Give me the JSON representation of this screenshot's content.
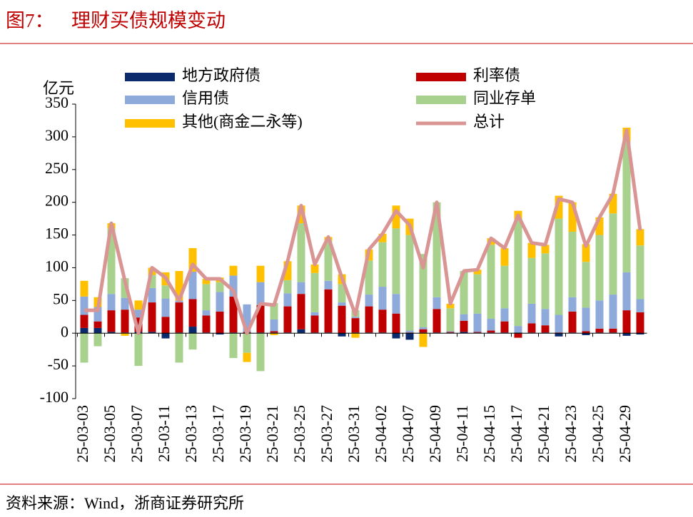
{
  "chart_data": {
    "type": "bar",
    "stacked": true,
    "figure_label": "图7：",
    "title": "理财买债规模变动",
    "y_label": "亿元",
    "source": "资料来源：Wind，浙商证券研究所",
    "categories": [
      "25-03-03",
      null,
      "25-03-05",
      null,
      "25-03-07",
      null,
      "25-03-11",
      null,
      "25-03-13",
      null,
      "25-03-17",
      null,
      "25-03-19",
      null,
      "25-03-21",
      null,
      "25-03-25",
      null,
      "25-03-27",
      null,
      "25-03-31",
      null,
      "25-04-02",
      null,
      "25-04-07",
      null,
      "25-04-09",
      null,
      "25-04-11",
      null,
      "25-04-15",
      null,
      "25-04-17",
      null,
      "25-04-21",
      null,
      "25-04-23",
      null,
      "25-04-25",
      null,
      "25-04-29",
      null
    ],
    "ylim": [
      -100,
      350
    ],
    "yticks": [
      -100,
      -50,
      0,
      50,
      100,
      150,
      200,
      250,
      300,
      350
    ],
    "grid": false,
    "series": [
      {
        "name": "地方政府债",
        "color": "#0b2a6b",
        "values": [
          8,
          8,
          2,
          1,
          2,
          2,
          -8,
          1,
          10,
          1,
          -2,
          1,
          1,
          1,
          1,
          1,
          6,
          1,
          1,
          -5,
          1,
          1,
          1,
          -8,
          -10,
          1,
          1,
          1,
          2,
          1,
          1,
          1,
          1,
          1,
          1,
          -5,
          1,
          -3,
          1,
          1,
          -4,
          -2
        ]
      },
      {
        "name": "利率债",
        "color": "#c00000",
        "values": [
          20,
          10,
          33,
          35,
          22,
          45,
          25,
          46,
          42,
          26,
          33,
          55,
          1,
          42,
          2,
          40,
          54,
          26,
          66,
          42,
          22,
          40,
          35,
          30,
          1,
          5,
          36,
          1,
          17,
          1,
          3,
          17,
          -7,
          14,
          11,
          1,
          32,
          3,
          6,
          6,
          35,
          32
        ]
      },
      {
        "name": "信用债",
        "color": "#8eaadb",
        "values": [
          28,
          22,
          25,
          18,
          12,
          22,
          28,
          3,
          42,
          8,
          30,
          32,
          42,
          35,
          18,
          20,
          18,
          5,
          13,
          5,
          2,
          18,
          35,
          30,
          3,
          3,
          18,
          1,
          10,
          28,
          18,
          20,
          10,
          30,
          25,
          27,
          22,
          36,
          43,
          52,
          58,
          20
        ]
      },
      {
        "name": "同业存单",
        "color": "#a9d18e",
        "values": [
          -45,
          -20,
          100,
          30,
          -50,
          20,
          20,
          -45,
          -25,
          40,
          15,
          -38,
          -30,
          -58,
          25,
          20,
          90,
          60,
          62,
          28,
          10,
          52,
          68,
          100,
          146,
          112,
          145,
          35,
          66,
          60,
          113,
          65,
          163,
          70,
          85,
          147,
          100,
          70,
          100,
          124,
          200,
          82
        ]
      },
      {
        "name": "其他(商金二永等)",
        "color": "#ffc000",
        "values": [
          24,
          15,
          8,
          -4,
          14,
          11,
          20,
          45,
          36,
          8,
          7,
          15,
          -14,
          25,
          -3,
          29,
          27,
          13,
          5,
          15,
          -7,
          17,
          13,
          35,
          25,
          -21,
          0,
          7,
          0,
          7,
          10,
          27,
          13,
          23,
          13,
          35,
          45,
          27,
          27,
          30,
          21,
          25
        ]
      },
      {
        "name": "总计",
        "color": "#d99594",
        "type": "line",
        "values": [
          35,
          35,
          168,
          80,
          0,
          100,
          85,
          50,
          105,
          83,
          83,
          65,
          0,
          45,
          43,
          110,
          195,
          105,
          147,
          85,
          28,
          128,
          152,
          187,
          165,
          100,
          200,
          45,
          95,
          97,
          145,
          130,
          180,
          138,
          135,
          205,
          200,
          133,
          177,
          213,
          310,
          157
        ]
      }
    ]
  }
}
